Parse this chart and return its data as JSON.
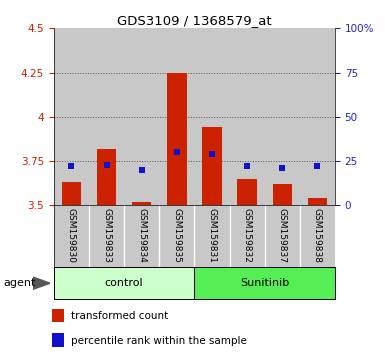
{
  "title": "GDS3109 / 1368579_at",
  "samples": [
    "GSM159830",
    "GSM159833",
    "GSM159834",
    "GSM159835",
    "GSM159831",
    "GSM159832",
    "GSM159837",
    "GSM159838"
  ],
  "transformed_counts": [
    3.63,
    3.82,
    3.52,
    4.25,
    3.94,
    3.65,
    3.62,
    3.54
  ],
  "percentile_ranks": [
    22,
    23,
    20,
    30,
    29,
    22,
    21,
    22
  ],
  "baseline": 3.5,
  "ylim_left": [
    3.5,
    4.5
  ],
  "ylim_right": [
    0,
    100
  ],
  "yticks_left": [
    3.5,
    3.75,
    4.0,
    4.25,
    4.5
  ],
  "yticks_right": [
    0,
    25,
    50,
    75,
    100
  ],
  "ytick_labels_left": [
    "3.5",
    "3.75",
    "4",
    "4.25",
    "4.5"
  ],
  "ytick_labels_right": [
    "0",
    "25",
    "50",
    "75",
    "100%"
  ],
  "groups": [
    {
      "label": "control",
      "indices": [
        0,
        1,
        2,
        3
      ],
      "color": "#ccffcc"
    },
    {
      "label": "Sunitinib",
      "indices": [
        4,
        5,
        6,
        7
      ],
      "color": "#55ee55"
    }
  ],
  "bar_color": "#cc2200",
  "marker_color": "#1111cc",
  "bar_width": 0.55,
  "col_bg_color": "#c8c8c8",
  "agent_label": "agent",
  "legend_bar_label": "transformed count",
  "legend_marker_label": "percentile rank within the sample",
  "left_tick_color": "#cc2200",
  "right_tick_color": "#2222cc",
  "marker_size": 5,
  "grid_yticks": [
    3.75,
    4.0,
    4.25
  ],
  "dotted_grid_color": "#555555"
}
